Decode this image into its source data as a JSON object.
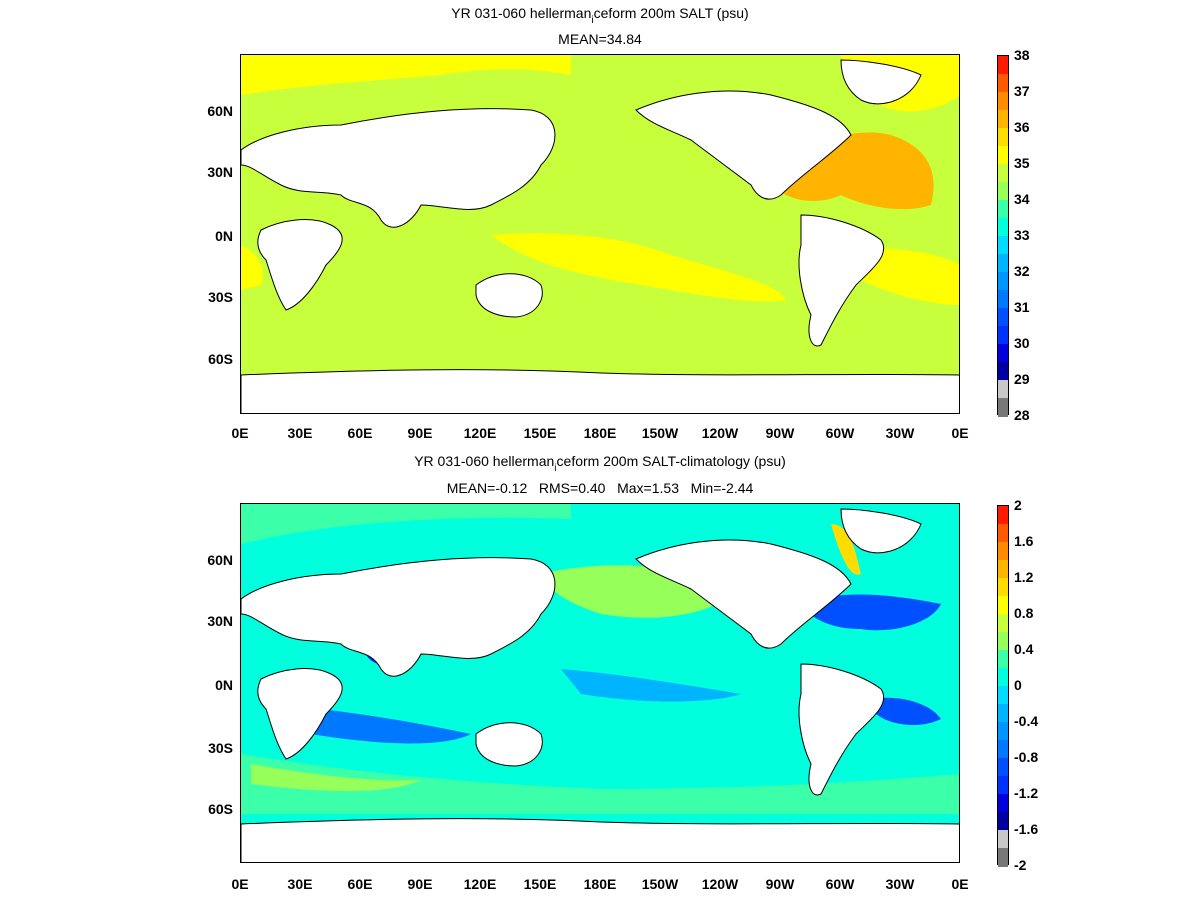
{
  "panels": [
    {
      "title_prefix": "YR 031-060 hellerman",
      "title_sub": "i",
      "title_suffix": "ceform 200m SALT (psu)",
      "stats": "MEAN=34.84",
      "colorbar": {
        "ticks": [
          "38",
          "37",
          "36",
          "35",
          "34",
          "33",
          "32",
          "31",
          "30",
          "29",
          "28"
        ],
        "colors": [
          "#ff1a00",
          "#ff5a00",
          "#ff8c00",
          "#ffb400",
          "#ffdc00",
          "#ffff00",
          "#c8ff3c",
          "#96ff5a",
          "#3cffaa",
          "#00ffdc",
          "#00dcff",
          "#00b4ff",
          "#0096ff",
          "#0078ff",
          "#0050ff",
          "#0032ff",
          "#0000dc",
          "#0000a0",
          "#c8c8c8",
          "#787878"
        ]
      },
      "ocean_base": "#c8ff3c"
    },
    {
      "title_prefix": "YR 031-060 hellerman",
      "title_sub": "i",
      "title_suffix": "ceform 200m SALT-climatology (psu)",
      "stats": "MEAN=-0.12   RMS=0.40   Max=1.53   Min=-2.44",
      "colorbar": {
        "ticks": [
          "2",
          "1.6",
          "1.2",
          "0.8",
          "0.4",
          "0",
          "-0.4",
          "-0.8",
          "-1.2",
          "-1.6",
          "-2"
        ],
        "colors": [
          "#ff1a00",
          "#ff5a00",
          "#ff8c00",
          "#ffb400",
          "#ffdc00",
          "#ffff00",
          "#c8ff3c",
          "#96ff5a",
          "#3cffaa",
          "#00ffdc",
          "#00dcff",
          "#00b4ff",
          "#0096ff",
          "#0078ff",
          "#0050ff",
          "#0032ff",
          "#0000dc",
          "#0000a0",
          "#c8c8c8",
          "#787878"
        ]
      },
      "ocean_base": "#00ffdc"
    }
  ],
  "lat_labels": [
    "60N",
    "30N",
    "0N",
    "30S",
    "60S"
  ],
  "lon_labels": [
    "0E",
    "30E",
    "60E",
    "90E",
    "120E",
    "150E",
    "180E",
    "150W",
    "120W",
    "90W",
    "60W",
    "30W",
    "0E"
  ]
}
